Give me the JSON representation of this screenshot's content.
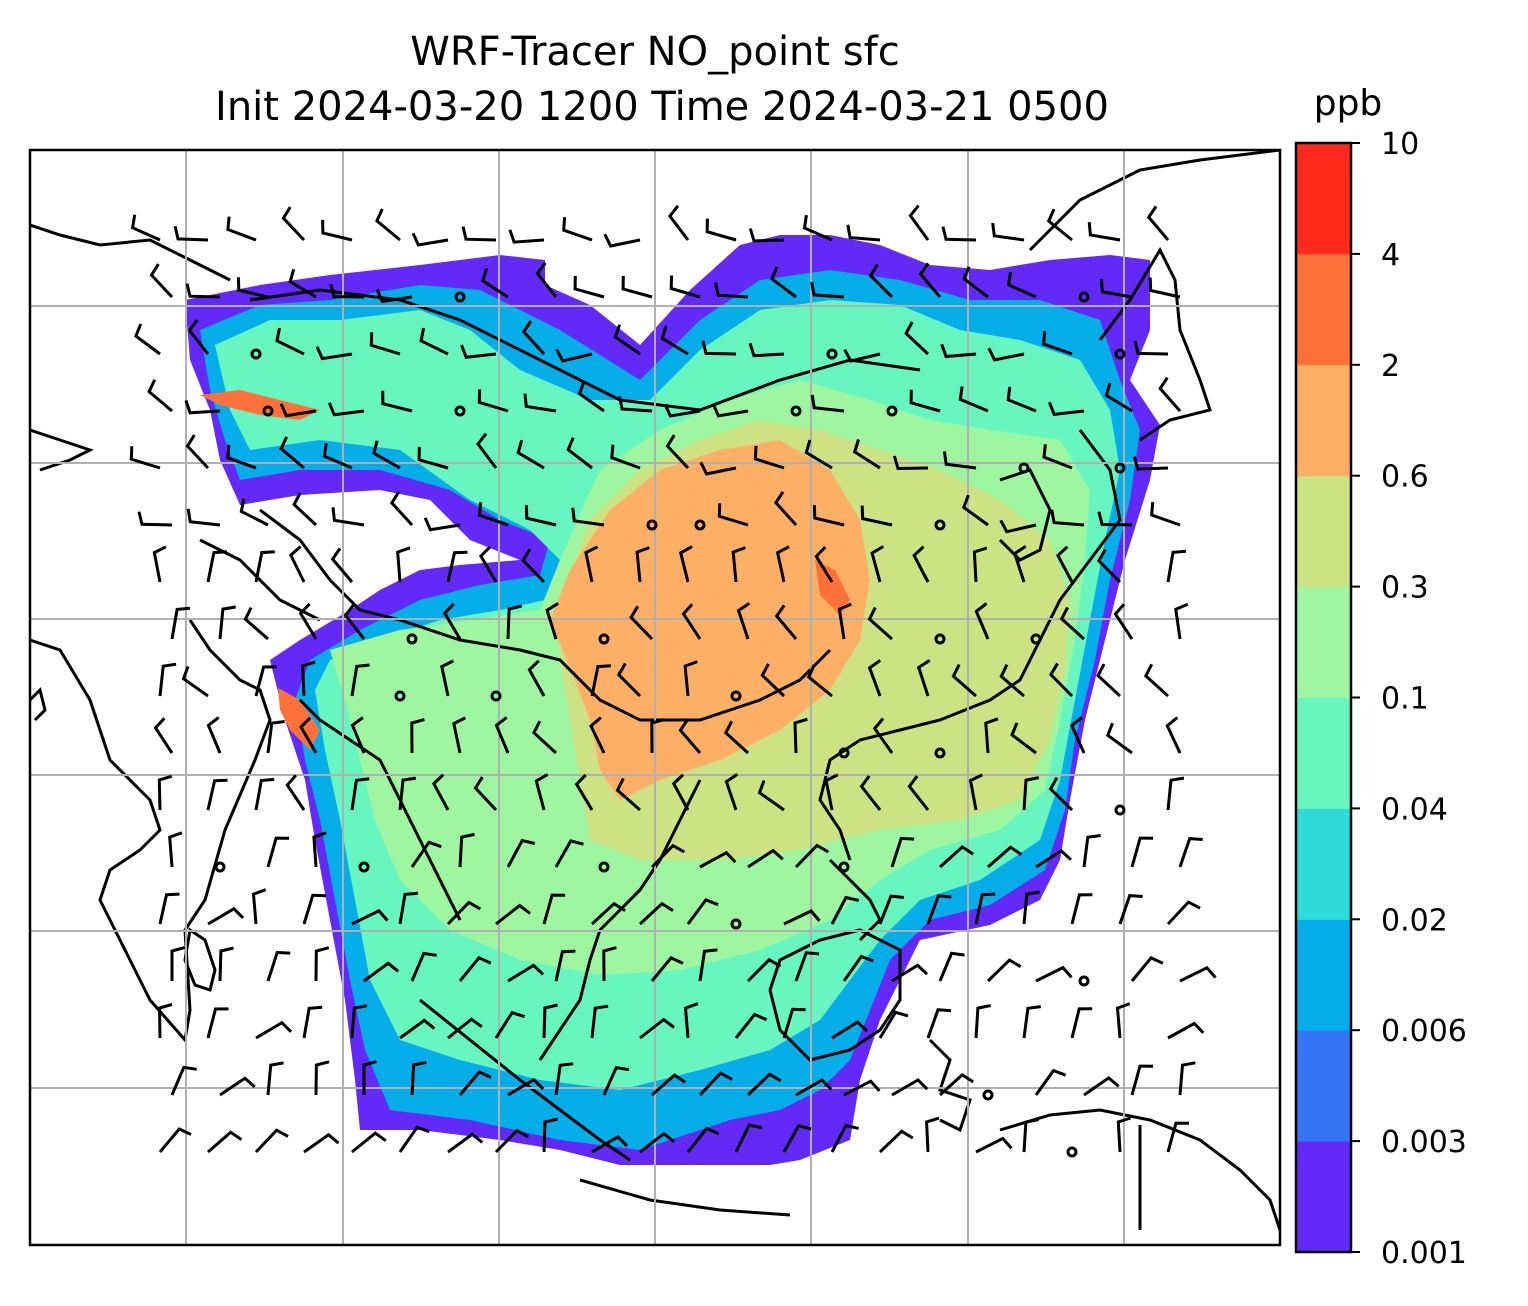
{
  "title": {
    "line1": "WRF-Tracer NO_point sfc",
    "line2": "Init 2024-03-20 1200 Time 2024-03-21 0500"
  },
  "colorbar": {
    "unit": "ppb",
    "levels": [
      "0.001",
      "0.003",
      "0.006",
      "0.02",
      "0.04",
      "0.1",
      "0.3",
      "0.6",
      "2",
      "4",
      "10"
    ],
    "colors": [
      "#6329f7",
      "#3574f5",
      "#05aee9",
      "#2fdbd9",
      "#68f6c0",
      "#9ef7a0",
      "#cde283",
      "#fdaf66",
      "#ff7139",
      "#ff2a1b"
    ]
  },
  "map": {
    "ocean_color": "#ffffff",
    "coastline_color": "#000000",
    "gridline_color": "#b0b0b0",
    "barb_color": "#000000"
  }
}
